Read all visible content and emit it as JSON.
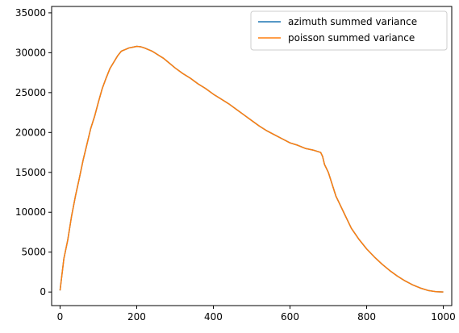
{
  "chart_data": {
    "type": "line",
    "title": "",
    "xlabel": "",
    "ylabel": "",
    "xlim": [
      -22,
      1022
    ],
    "ylim": [
      -1700,
      35800
    ],
    "x_ticks": [
      {
        "value": 0,
        "label": "0"
      },
      {
        "value": 200,
        "label": "200"
      },
      {
        "value": 400,
        "label": "400"
      },
      {
        "value": 600,
        "label": "600"
      },
      {
        "value": 800,
        "label": "800"
      },
      {
        "value": 1000,
        "label": "1000"
      }
    ],
    "y_ticks": [
      {
        "value": 0,
        "label": "0"
      },
      {
        "value": 5000,
        "label": "5000"
      },
      {
        "value": 10000,
        "label": "10000"
      },
      {
        "value": 15000,
        "label": "15000"
      },
      {
        "value": 20000,
        "label": "20000"
      },
      {
        "value": 25000,
        "label": "25000"
      },
      {
        "value": 30000,
        "label": "30000"
      },
      {
        "value": 35000,
        "label": "35000"
      }
    ],
    "grid": false,
    "legend_position": "upper right",
    "series": [
      {
        "name": "azimuth summed variance",
        "color": "#1f77b4",
        "x": [
          0,
          10,
          20,
          30,
          40,
          50,
          60,
          70,
          80,
          90,
          100,
          110,
          120,
          130,
          140,
          150,
          160,
          170,
          180,
          190,
          200,
          210,
          220,
          230,
          240,
          250,
          260,
          270,
          280,
          290,
          300,
          320,
          340,
          360,
          380,
          400,
          420,
          440,
          460,
          480,
          500,
          520,
          540,
          560,
          580,
          600,
          620,
          640,
          660,
          680,
          685,
          690,
          700,
          710,
          720,
          730,
          740,
          750,
          760,
          780,
          800,
          820,
          840,
          860,
          880,
          900,
          920,
          940,
          960,
          980,
          1000
        ],
        "y": [
          200,
          4200,
          6500,
          9500,
          12000,
          14200,
          16500,
          18500,
          20500,
          22000,
          23800,
          25500,
          26800,
          28000,
          28800,
          29600,
          30200,
          30400,
          30600,
          30700,
          30800,
          30750,
          30600,
          30400,
          30200,
          29900,
          29600,
          29300,
          28900,
          28500,
          28100,
          27400,
          26800,
          26100,
          25500,
          24800,
          24200,
          23600,
          22900,
          22200,
          21500,
          20800,
          20200,
          19700,
          19200,
          18700,
          18400,
          18000,
          17800,
          17500,
          17000,
          16000,
          15000,
          13500,
          12000,
          11000,
          10000,
          9000,
          8000,
          6600,
          5400,
          4400,
          3500,
          2700,
          2000,
          1400,
          900,
          500,
          200,
          50,
          0
        ]
      },
      {
        "name": "poisson summed variance",
        "color": "#ff7f0e",
        "x": [
          0,
          10,
          20,
          30,
          40,
          50,
          60,
          70,
          80,
          90,
          100,
          110,
          120,
          130,
          140,
          150,
          160,
          170,
          180,
          190,
          200,
          210,
          220,
          230,
          240,
          250,
          260,
          270,
          280,
          290,
          300,
          320,
          340,
          360,
          380,
          400,
          420,
          440,
          460,
          480,
          500,
          520,
          540,
          560,
          580,
          600,
          620,
          640,
          660,
          680,
          685,
          690,
          700,
          710,
          720,
          730,
          740,
          750,
          760,
          780,
          800,
          820,
          840,
          860,
          880,
          900,
          920,
          940,
          960,
          980,
          1000
        ],
        "y": [
          200,
          4200,
          6500,
          9500,
          12000,
          14200,
          16500,
          18500,
          20500,
          22000,
          23800,
          25500,
          26800,
          28000,
          28800,
          29600,
          30200,
          30400,
          30600,
          30700,
          30800,
          30750,
          30600,
          30400,
          30200,
          29900,
          29600,
          29300,
          28900,
          28500,
          28100,
          27400,
          26800,
          26100,
          25500,
          24800,
          24200,
          23600,
          22900,
          22200,
          21500,
          20800,
          20200,
          19700,
          19200,
          18700,
          18400,
          18000,
          17800,
          17500,
          17000,
          16000,
          15000,
          13500,
          12000,
          11000,
          10000,
          9000,
          8000,
          6600,
          5400,
          4400,
          3500,
          2700,
          2000,
          1400,
          900,
          500,
          200,
          50,
          0
        ]
      }
    ]
  }
}
